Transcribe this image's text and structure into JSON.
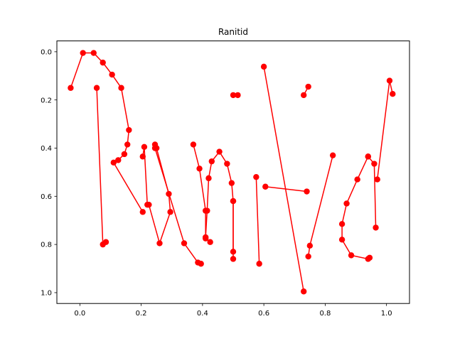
{
  "chart_data": {
    "type": "line",
    "title": "Ranitid",
    "xlabel": "",
    "ylabel": "",
    "xlim": [
      -0.075,
      1.075
    ],
    "ylim": [
      1.045,
      -0.045
    ],
    "y_axis_inverted": true,
    "grid": false,
    "legend": "none",
    "x_ticks": [
      0.0,
      0.2,
      0.4,
      0.6,
      0.8,
      1.0
    ],
    "x_tick_labels": [
      "0.0",
      "0.2",
      "0.4",
      "0.6",
      "0.8",
      "1.0"
    ],
    "y_ticks": [
      0.0,
      0.2,
      0.4,
      0.6,
      0.8,
      1.0
    ],
    "y_tick_labels": [
      "0.0",
      "0.2",
      "0.4",
      "0.6",
      "0.8",
      "1.0"
    ],
    "color": "#ff0000",
    "strokes": [
      {
        "points": [
          [
            -0.03,
            0.15
          ],
          [
            0.01,
            0.005
          ],
          [
            0.045,
            0.005
          ],
          [
            0.075,
            0.045
          ],
          [
            0.105,
            0.095
          ],
          [
            0.135,
            0.15
          ],
          [
            0.16,
            0.325
          ],
          [
            0.155,
            0.385
          ],
          [
            0.145,
            0.425
          ],
          [
            0.125,
            0.45
          ],
          [
            0.11,
            0.46
          ],
          [
            0.205,
            0.665
          ]
        ]
      },
      {
        "points": [
          [
            0.055,
            0.15
          ],
          [
            0.075,
            0.8
          ],
          [
            0.085,
            0.79
          ]
        ]
      },
      {
        "points": [
          [
            0.205,
            0.435
          ],
          [
            0.21,
            0.395
          ],
          [
            0.22,
            0.635
          ]
        ]
      },
      {
        "points": [
          [
            0.245,
            0.385
          ],
          [
            0.25,
            0.4
          ],
          [
            0.29,
            0.59
          ],
          [
            0.295,
            0.665
          ],
          [
            0.26,
            0.795
          ],
          [
            0.225,
            0.635
          ]
        ]
      },
      {
        "points": [
          [
            0.245,
            0.4
          ],
          [
            0.34,
            0.795
          ],
          [
            0.385,
            0.875
          ],
          [
            0.395,
            0.88
          ]
        ]
      },
      {
        "points": [
          [
            0.37,
            0.385
          ],
          [
            0.39,
            0.485
          ],
          [
            0.41,
            0.66
          ],
          [
            0.41,
            0.775
          ],
          [
            0.425,
            0.79
          ]
        ]
      },
      {
        "points": [
          [
            0.41,
            0.77
          ],
          [
            0.415,
            0.66
          ],
          [
            0.42,
            0.525
          ],
          [
            0.43,
            0.455
          ],
          [
            0.455,
            0.415
          ],
          [
            0.48,
            0.465
          ],
          [
            0.495,
            0.545
          ],
          [
            0.5,
            0.62
          ],
          [
            0.5,
            0.86
          ]
        ]
      },
      {
        "points": [
          [
            0.5,
            0.83
          ],
          [
            0.5,
            0.62
          ]
        ]
      },
      {
        "points": [
          [
            0.5,
            0.18
          ],
          [
            0.515,
            0.18
          ]
        ]
      },
      {
        "points": [
          [
            0.575,
            0.52
          ],
          [
            0.585,
            0.88
          ]
        ]
      },
      {
        "points": [
          [
            0.605,
            0.56
          ],
          [
            0.74,
            0.58
          ]
        ]
      },
      {
        "points": [
          [
            0.6,
            0.062
          ],
          [
            0.73,
            0.995
          ]
        ]
      },
      {
        "points": [
          [
            0.73,
            0.18
          ],
          [
            0.745,
            0.145
          ]
        ]
      },
      {
        "points": [
          [
            0.825,
            0.43
          ],
          [
            0.75,
            0.805
          ],
          [
            0.745,
            0.85
          ]
        ]
      },
      {
        "points": [
          [
            0.94,
            0.435
          ],
          [
            0.96,
            0.465
          ],
          [
            0.965,
            0.73
          ]
        ]
      },
      {
        "points": [
          [
            0.94,
            0.435
          ],
          [
            0.905,
            0.53
          ],
          [
            0.87,
            0.63
          ],
          [
            0.855,
            0.715
          ],
          [
            0.855,
            0.78
          ],
          [
            0.885,
            0.845
          ],
          [
            0.94,
            0.86
          ],
          [
            0.945,
            0.855
          ]
        ]
      },
      {
        "points": [
          [
            0.97,
            0.53
          ],
          [
            1.01,
            0.12
          ],
          [
            1.02,
            0.175
          ]
        ]
      }
    ]
  }
}
